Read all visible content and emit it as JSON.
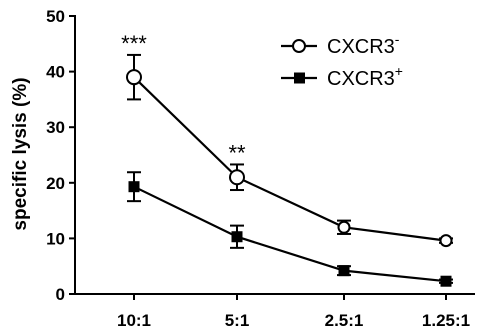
{
  "chart_data": {
    "type": "line",
    "title": "",
    "xlabel": "",
    "ylabel": "specific lysis (%)",
    "categories": [
      "10:1",
      "5:1",
      "2.5:1",
      "1.25:1"
    ],
    "ylim": [
      0,
      50
    ],
    "yticks": [
      0,
      10,
      20,
      30,
      40,
      50
    ],
    "grid": false,
    "legend_position": "top-right",
    "series": [
      {
        "name": "CXCR3",
        "superscript": "-",
        "marker": "open-circle",
        "color": "#000000",
        "values": [
          39,
          21,
          12,
          9.6
        ],
        "errors": [
          4,
          2.3,
          1.2,
          0.4
        ]
      },
      {
        "name": "CXCR3",
        "superscript": "+",
        "marker": "filled-square",
        "color": "#000000",
        "values": [
          19.3,
          10.3,
          4.2,
          2.3
        ],
        "errors": [
          2.6,
          2,
          0.8,
          0.3
        ]
      }
    ],
    "annotations": [
      {
        "category_index": 0,
        "text": "***"
      },
      {
        "category_index": 1,
        "text": "**"
      }
    ]
  }
}
